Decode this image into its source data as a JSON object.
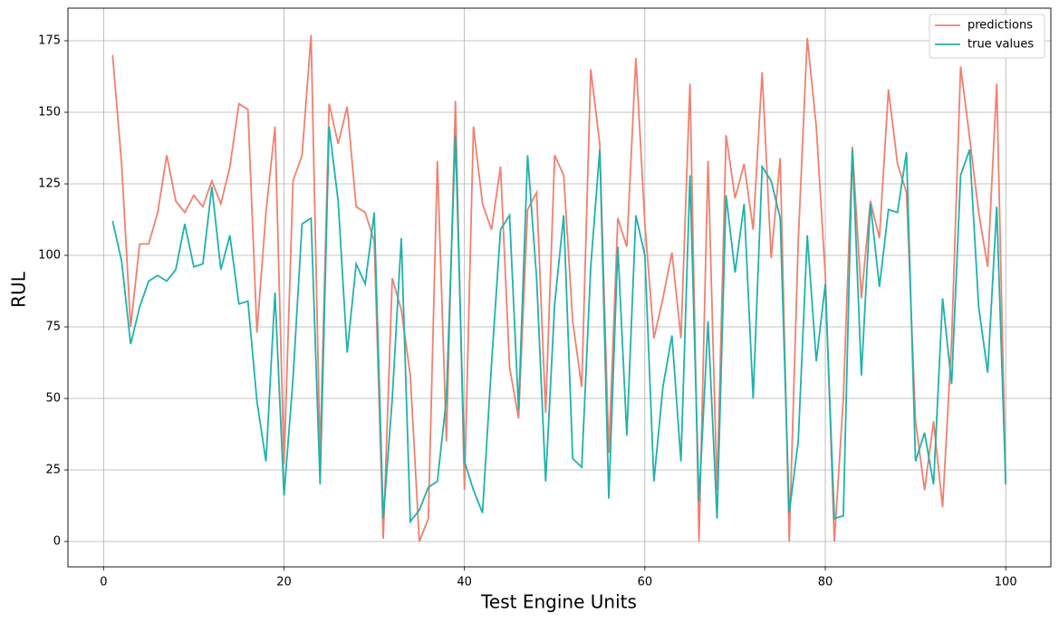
{
  "chart_data": {
    "type": "line",
    "xlabel": "Test Engine Units",
    "ylabel": "RUL",
    "x": [
      1,
      2,
      3,
      4,
      5,
      6,
      7,
      8,
      9,
      10,
      11,
      12,
      13,
      14,
      15,
      16,
      17,
      18,
      19,
      20,
      21,
      22,
      23,
      24,
      25,
      26,
      27,
      28,
      29,
      30,
      31,
      32,
      33,
      34,
      35,
      36,
      37,
      38,
      39,
      40,
      41,
      42,
      43,
      44,
      45,
      46,
      47,
      48,
      49,
      50,
      51,
      52,
      53,
      54,
      55,
      56,
      57,
      58,
      59,
      60,
      61,
      62,
      63,
      64,
      65,
      66,
      67,
      68,
      69,
      70,
      71,
      72,
      73,
      74,
      75,
      76,
      77,
      78,
      79,
      80,
      81,
      82,
      83,
      84,
      85,
      86,
      87,
      88,
      89,
      90,
      91,
      92,
      93,
      94,
      95,
      96,
      97,
      98,
      99,
      100
    ],
    "series": [
      {
        "name": "predictions",
        "color": "#f08070",
        "values": [
          170,
          132,
          75,
          104,
          104,
          115,
          135,
          119,
          115,
          121,
          117,
          126,
          118,
          131,
          153,
          151,
          73,
          115,
          145,
          27,
          126,
          135,
          177,
          30,
          153,
          139,
          152,
          117,
          115,
          105,
          1,
          92,
          81,
          58,
          0,
          8,
          133,
          35,
          154,
          18,
          145,
          118,
          109,
          131,
          61,
          43,
          116,
          122,
          45,
          135,
          128,
          77,
          54,
          165,
          139,
          31,
          113,
          103,
          169,
          111,
          71,
          85,
          101,
          71,
          160,
          0,
          133,
          18,
          142,
          120,
          132,
          109,
          164,
          99,
          134,
          0,
          105,
          176,
          145,
          93,
          0,
          50,
          138,
          85,
          119,
          106,
          158,
          132,
          122,
          42,
          18,
          42,
          12,
          70,
          166,
          141,
          115,
          96,
          160,
          20
        ]
      },
      {
        "name": "true values",
        "color": "#20b2aa",
        "values": [
          112,
          98,
          69,
          82,
          91,
          93,
          91,
          95,
          111,
          96,
          97,
          124,
          95,
          107,
          83,
          84,
          49,
          28,
          87,
          16,
          57,
          111,
          113,
          20,
          145,
          119,
          66,
          97,
          90,
          115,
          8,
          50,
          106,
          7,
          11,
          19,
          21,
          50,
          142,
          28,
          18,
          10,
          62,
          109,
          114,
          46,
          135,
          92,
          21,
          83,
          114,
          29,
          26,
          96,
          137,
          15,
          103,
          37,
          114,
          100,
          21,
          54,
          72,
          28,
          128,
          14,
          77,
          8,
          121,
          94,
          118,
          50,
          131,
          126,
          113,
          10,
          35,
          107,
          63,
          90,
          8,
          9,
          137,
          58,
          118,
          89,
          116,
          115,
          136,
          28,
          38,
          20,
          85,
          55,
          128,
          137,
          82,
          59,
          117,
          20
        ]
      }
    ],
    "xlim": [
      -3.95,
      105.0
    ],
    "ylim": [
      -8.86,
      186.4
    ],
    "xticks": [
      0,
      20,
      40,
      60,
      80,
      100
    ],
    "yticks": [
      0,
      25,
      50,
      75,
      100,
      125,
      150,
      175
    ],
    "grid": true,
    "legend": "upper right"
  }
}
